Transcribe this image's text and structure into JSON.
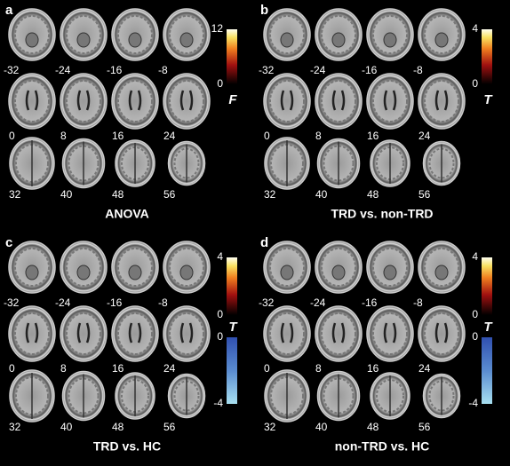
{
  "panels": [
    {
      "letter": "a",
      "slices": [
        -32,
        -24,
        -16,
        -8,
        0,
        8,
        16,
        24,
        32,
        40,
        48,
        56
      ],
      "colorbars": [
        {
          "ticks": [
            12,
            0
          ]
        }
      ],
      "stat": "F",
      "caption": "ANOVA"
    },
    {
      "letter": "b",
      "slices": [
        -32,
        -24,
        -16,
        -8,
        0,
        8,
        16,
        24,
        32,
        40,
        48,
        56
      ],
      "colorbars": [
        {
          "ticks": [
            4,
            0
          ]
        }
      ],
      "stat": "T",
      "caption": "TRD vs. non-TRD"
    },
    {
      "letter": "c",
      "slices": [
        -32,
        -24,
        -16,
        -8,
        0,
        8,
        16,
        24,
        32,
        40,
        48,
        56
      ],
      "colorbars": [
        {
          "ticks": [
            4,
            0
          ]
        },
        {
          "ticks": [
            0,
            -4
          ]
        }
      ],
      "stat": "T",
      "caption": "TRD vs. HC"
    },
    {
      "letter": "d",
      "slices": [
        -32,
        -24,
        -16,
        -8,
        0,
        8,
        16,
        24,
        32,
        40,
        48,
        56
      ],
      "colorbars": [
        {
          "ticks": [
            4,
            0
          ]
        },
        {
          "ticks": [
            0,
            -4
          ]
        }
      ],
      "stat": "T",
      "caption": "non-TRD vs. HC"
    }
  ]
}
